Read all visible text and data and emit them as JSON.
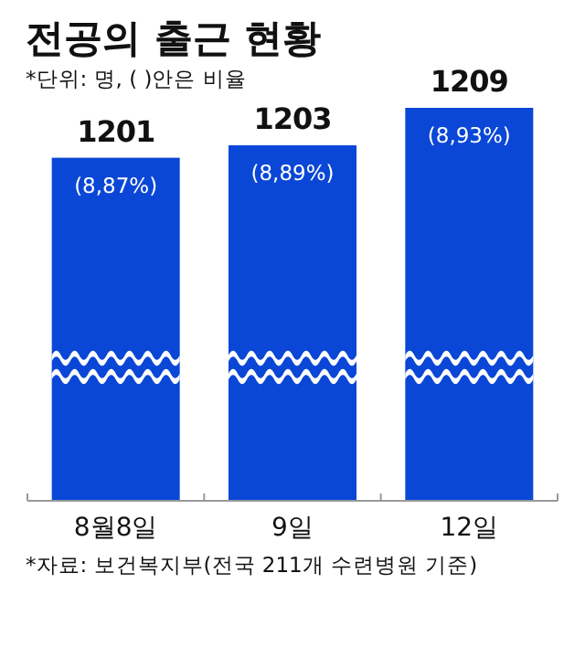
{
  "chart_data": {
    "type": "bar",
    "title": "전공의 출근 현황",
    "subtitle": "*단위: 명, ( )안은 비율",
    "categories": [
      "8월8일",
      "9일",
      "12일"
    ],
    "values": [
      1201,
      1203,
      1209
    ],
    "color": "#0b47d6",
    "data_labels": true,
    "ylim": [
      1146,
      1209
    ],
    "tick_labels": "x",
    "annotations": [
      {
        "text": "(8,87%)",
        "x": "8월8일",
        "y": 1201
      },
      {
        "text": "(8,89%)",
        "x": "9일",
        "y": 1203
      },
      {
        "text": "(8,93%)",
        "x": "12일",
        "y": 1209
      },
      "*자료: 보건복지부(전국 211개 수련병원 기준)"
    ]
  }
}
